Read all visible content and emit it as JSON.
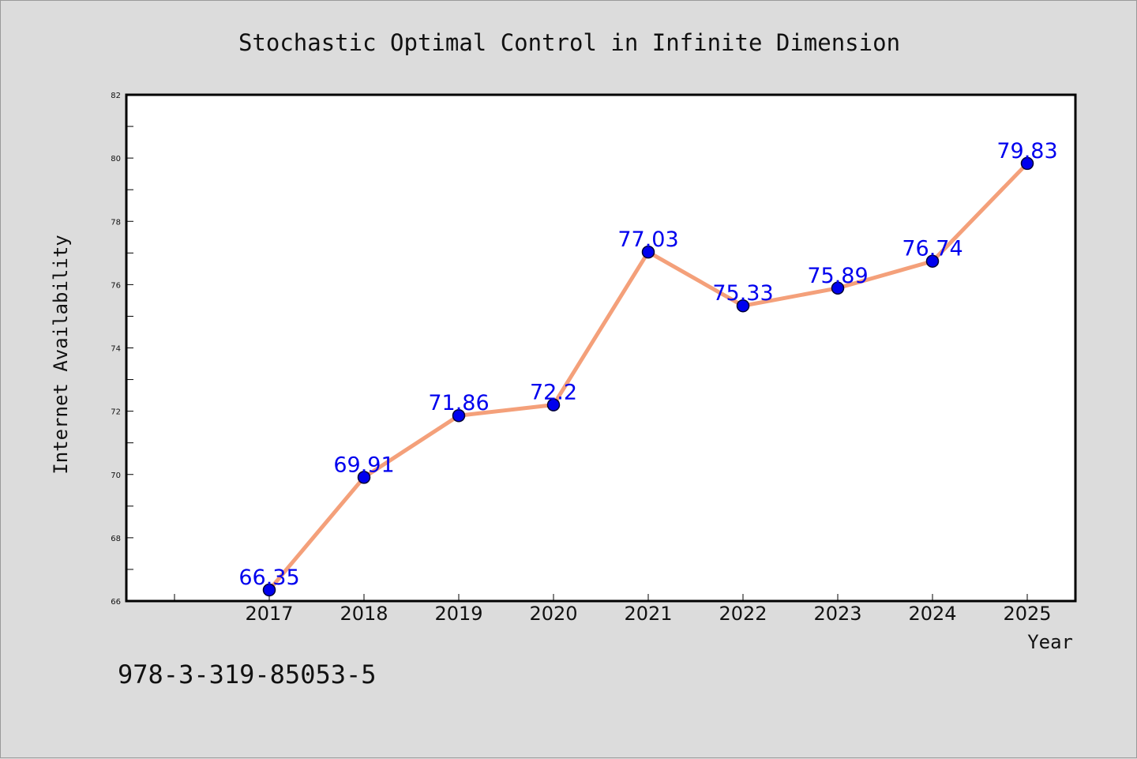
{
  "chart_data": {
    "type": "line",
    "title": "Stochastic Optimal Control in Infinite Dimension",
    "xlabel": "Year",
    "ylabel": "Internet Availability",
    "categories": [
      "2017",
      "2018",
      "2019",
      "2020",
      "2021",
      "2022",
      "2023",
      "2024",
      "2025"
    ],
    "series": [
      {
        "values": [
          66.35,
          69.91,
          71.86,
          72.2,
          77.03,
          75.33,
          75.89,
          76.74,
          79.83
        ],
        "labels": [
          "66.35",
          "69.91",
          "71.86",
          "72.2",
          "77.03",
          "75.33",
          "75.89",
          "76.74",
          "79.83"
        ]
      }
    ],
    "ylim": [
      66,
      82
    ],
    "yticks": [
      "66",
      "68",
      "70",
      "72",
      "74",
      "76",
      "78",
      "80",
      "82"
    ],
    "grid": false,
    "legend": "none",
    "colors": {
      "line": "#f4a07a",
      "marker": "#0000ee",
      "marker_edge": "#000033",
      "data_label": "#0000ee",
      "background": "#dcdcdc",
      "plot_background": "#ffffff"
    }
  },
  "footer": {
    "isbn": "978-3-319-85053-5"
  }
}
